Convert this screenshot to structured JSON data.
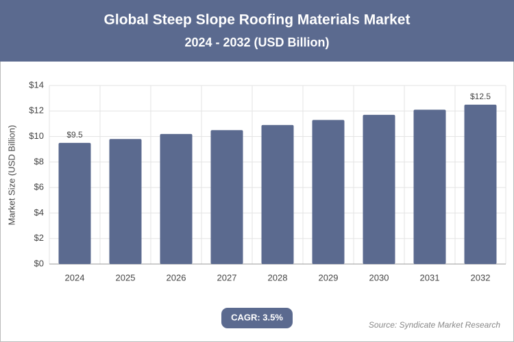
{
  "chart_data": {
    "type": "bar",
    "title": "Global Steep Slope Roofing Materials Market",
    "subtitle": "2024 - 2032 (USD Billion)",
    "y_label": "Market Size (USD Billion)",
    "categories": [
      "2024",
      "2025",
      "2026",
      "2027",
      "2028",
      "2029",
      "2030",
      "2031",
      "2032"
    ],
    "values": [
      9.5,
      9.8,
      10.2,
      10.5,
      10.9,
      11.3,
      11.7,
      12.1,
      12.5
    ],
    "value_labels": [
      "$9.5",
      null,
      null,
      null,
      null,
      null,
      null,
      null,
      "$12.5"
    ],
    "color": "#5b6a8f",
    "ylim": [
      0,
      14
    ],
    "yticks": [
      {
        "value": 0,
        "label": "$0"
      },
      {
        "value": 2,
        "label": "$2"
      },
      {
        "value": 4,
        "label": "$4"
      },
      {
        "value": 6,
        "label": "$6"
      },
      {
        "value": 8,
        "label": "$8"
      },
      {
        "value": 10,
        "label": "$10"
      },
      {
        "value": 12,
        "label": "$12"
      },
      {
        "value": 14,
        "label": "$14"
      }
    ],
    "grid": true,
    "cagr": "CAGR: 3.5%",
    "source": "Source: Syndicate Market Research"
  }
}
